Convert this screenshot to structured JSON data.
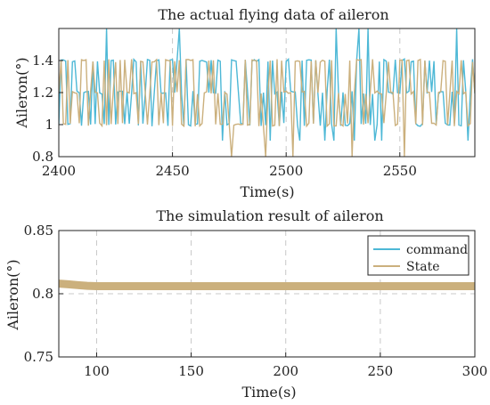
{
  "colors": {
    "command": "#4db8d6",
    "state": "#cbb07d"
  },
  "chart_data": [
    {
      "type": "line",
      "title": "The actual flying data of aileron",
      "xlabel": "Time(s)",
      "ylabel": "Aileron(°)",
      "xlim": [
        2400,
        2583
      ],
      "ylim": [
        0.8,
        1.6
      ],
      "xticks": [
        "2400",
        "2450",
        "2500",
        "2550"
      ],
      "yticks": [
        "0.8",
        "1",
        "1.2",
        "1.4"
      ],
      "grid": "x-dashed",
      "legend": "none",
      "series": [
        {
          "name": "",
          "key": "command",
          "sample_step_s": 1,
          "values_range": [
            0.9,
            1.6
          ],
          "levels": [
            1.0,
            1.2,
            1.4
          ]
        },
        {
          "name": "",
          "key": "state",
          "sample_step_s": 1,
          "values_range": [
            0.8,
            1.4
          ],
          "levels": [
            1.0,
            1.2,
            1.4
          ]
        }
      ]
    },
    {
      "type": "line",
      "title": "The simulation result of aileron",
      "xlabel": "Time(s)",
      "ylabel": "Aileron(°)",
      "xlim": [
        80,
        300
      ],
      "ylim": [
        0.75,
        0.85
      ],
      "xticks": [
        "100",
        "150",
        "200",
        "250",
        "300"
      ],
      "yticks": [
        "0.75",
        "0.8",
        "0.85"
      ],
      "grid": "dashed",
      "legend": "top-right",
      "series": [
        {
          "name": "command",
          "key": "command",
          "x": [
            80,
            90,
            100,
            120,
            150,
            200,
            250,
            300
          ],
          "values": [
            0.806,
            0.8055,
            0.8055,
            0.8055,
            0.8055,
            0.8055,
            0.8055,
            0.8055
          ]
        },
        {
          "name": "State",
          "key": "state",
          "x": [
            80,
            85,
            90,
            95,
            100,
            110,
            120,
            150,
            200,
            250,
            300
          ],
          "values": [
            0.808,
            0.8075,
            0.8068,
            0.8063,
            0.806,
            0.806,
            0.806,
            0.806,
            0.806,
            0.806,
            0.806
          ]
        }
      ]
    }
  ]
}
